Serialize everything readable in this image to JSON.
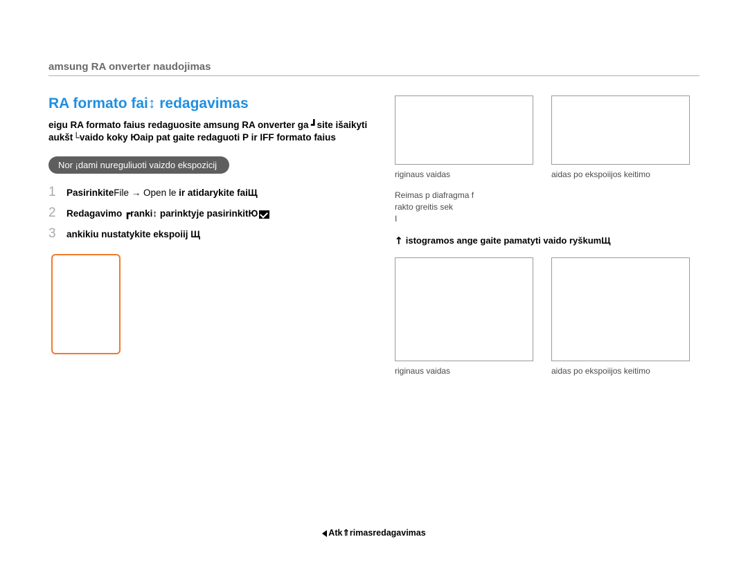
{
  "header": "amsung RA onverter naudojimas",
  "title": "RA formato fai↕   redagavimas",
  "intro": "eigu RA formato faius redaguosite amsung RA onverter  ga ┛site išaikyti aukšt└vaido koky  Юaip pat gaite redaguoti P ir IFF formato faius",
  "pill": "Nor ¡dami nureguliuoti vaizdo ekspozicij",
  "steps": [
    {
      "num": "1",
      "pre": "Pasirinkite",
      "mid": "File → Open  le ",
      "post": "ir atidarykite faiЩ"
    },
    {
      "num": "2",
      "pre": "Redagavimo ┏ranki↕ parinktyje pasirinkitЮ",
      "mid": "",
      "post": ""
    },
    {
      "num": "3",
      "pre": "ankikiu nustatykite ekspoiij   Щ",
      "mid": "",
      "post": ""
    }
  ],
  "captions": {
    "left": "riginaus vaidas",
    "right": "aidas po ekspoiijos keitimo"
  },
  "meta": "Reimas  p  diafragma f\nrakto greitis  sek\nI",
  "note": "istogramos ange gaite pamatyti vaido ryškumЩ",
  "footer": "Atk⇑rimasredagavimas"
}
